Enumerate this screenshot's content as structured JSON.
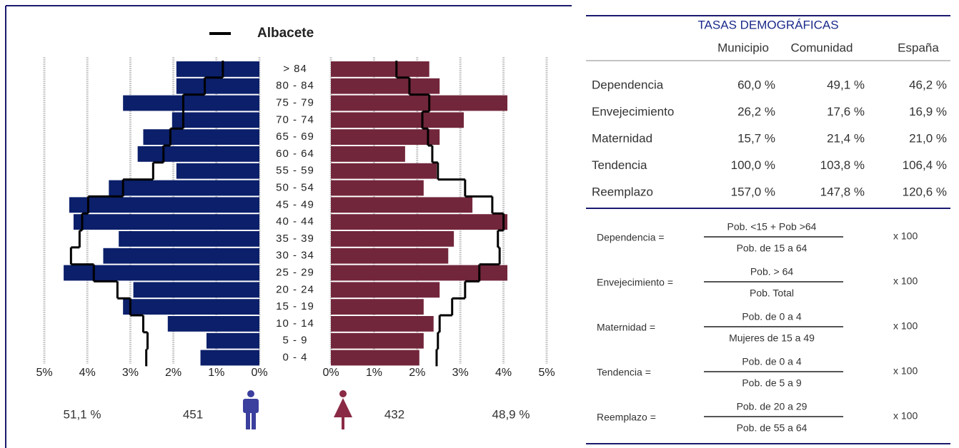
{
  "chart_data": {
    "type": "pyramid",
    "categories": [
      "> 84",
      "80 - 84",
      "75 - 79",
      "70 - 74",
      "65 - 69",
      "60 - 64",
      "55 - 59",
      "50 - 54",
      "45 - 49",
      "40 - 44",
      "35 - 39",
      "30 - 34",
      "25 - 29",
      "20 - 24",
      "15 - 19",
      "10 - 14",
      "5 - 9",
      "0 - 4"
    ],
    "series": [
      {
        "color": "#0b1f6a",
        "values": [
          1.93,
          1.93,
          3.17,
          2.03,
          2.7,
          2.83,
          1.93,
          3.5,
          4.42,
          4.32,
          3.27,
          3.63,
          4.55,
          2.93,
          3.17,
          2.13,
          1.23,
          1.37
        ]
      },
      {
        "color": "#72263b",
        "values": [
          2.28,
          2.52,
          4.09,
          3.08,
          2.52,
          1.72,
          2.45,
          2.15,
          3.28,
          4.09,
          2.85,
          2.72,
          4.09,
          2.52,
          2.15,
          2.38,
          2.15,
          2.05
        ]
      }
    ],
    "reference": {
      "name": "Albacete",
      "color": "#000000",
      "male": [
        0.85,
        1.27,
        1.77,
        1.77,
        2.07,
        2.23,
        2.47,
        3.17,
        3.98,
        4.12,
        4.18,
        4.38,
        3.85,
        3.3,
        3.0,
        2.7,
        2.6,
        2.63
      ],
      "female": [
        1.52,
        1.82,
        2.28,
        2.12,
        2.25,
        2.35,
        2.48,
        3.11,
        3.74,
        4.0,
        3.87,
        3.91,
        3.44,
        3.11,
        2.81,
        2.52,
        2.48,
        2.45
      ]
    },
    "xlim": [
      0,
      5
    ],
    "xticks_left": [
      {
        "value": 5,
        "label": "5%"
      },
      {
        "value": 4,
        "label": "4%"
      },
      {
        "value": 3,
        "label": "3%"
      },
      {
        "value": 2,
        "label": "2%"
      },
      {
        "value": 1,
        "label": "1%"
      },
      {
        "value": 0,
        "label": "0%"
      }
    ],
    "xticks_right": [
      {
        "value": 0,
        "label": "0%"
      },
      {
        "value": 1,
        "label": "1%"
      },
      {
        "value": 2,
        "label": "2%"
      },
      {
        "value": 3,
        "label": "3%"
      },
      {
        "value": 4,
        "label": "4%"
      },
      {
        "value": 5,
        "label": "5%"
      }
    ],
    "grid": true,
    "summary": {
      "male_percent": "51,1 %",
      "male_count": 451,
      "female_count": 432,
      "female_percent": "48,9 %"
    }
  },
  "table": {
    "title": "TASAS DEMOGRÁFICAS",
    "headers": [
      "Municipio",
      "Comunidad",
      "España"
    ],
    "rows": [
      [
        "Dependencia",
        "60,0 %",
        "49,1 %",
        "46,2 %"
      ],
      [
        "Envejecimiento",
        "26,2 %",
        "17,6 %",
        "16,9 %"
      ],
      [
        "Maternidad",
        "15,7 %",
        "21,4 %",
        "21,0 %"
      ],
      [
        "Tendencia",
        "100,0 %",
        "103,8 %",
        "106,4 %"
      ],
      [
        "Reemplazo",
        "157,0 %",
        "147,8 %",
        "120,6 %"
      ]
    ]
  },
  "formulas": [
    {
      "label": "Dependencia =",
      "numerator": "Pob. <15 + Pob >64",
      "denominator": "Pob. de 15 a 64",
      "factor": "x 100"
    },
    {
      "label": "Envejecimiento =",
      "numerator": "Pob. > 64",
      "denominator": "Pob. Total",
      "factor": "x 100"
    },
    {
      "label": "Maternidad =",
      "numerator": "Pob. de 0 a 4",
      "denominator": "Mujeres de 15 a 49",
      "factor": "x 100"
    },
    {
      "label": "Tendencia =",
      "numerator": "Pob. de 0 a 4",
      "denominator": "Pob. de 5 a 9",
      "factor": "x 100"
    },
    {
      "label": "Reemplazo =",
      "numerator": "Pob. de 20 a 29",
      "denominator": "Pob. de 55 a 64",
      "factor": "x 100"
    }
  ]
}
